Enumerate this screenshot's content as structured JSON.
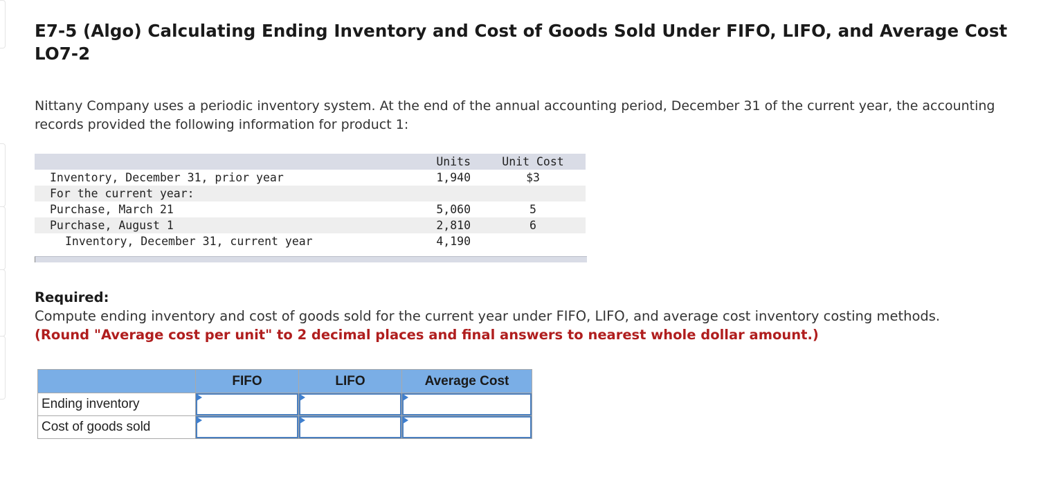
{
  "title": "E7-5 (Algo) Calculating Ending Inventory and Cost of Goods Sold Under FIFO, LIFO, and Average Cost LO7-2",
  "intro": "Nittany Company uses a periodic inventory system. At the end of the annual accounting period, December 31 of the current year, the accounting records provided the following information for product 1:",
  "data_table": {
    "headers": {
      "label": "",
      "units": "Units",
      "unit_cost": "Unit Cost"
    },
    "rows": [
      {
        "label": "Inventory, December 31, prior year",
        "units": "1,940",
        "unit_cost": "$3"
      },
      {
        "label": "For the current year:",
        "units": "",
        "unit_cost": ""
      },
      {
        "label": "Purchase, March 21",
        "units": "5,060",
        "unit_cost": "5"
      },
      {
        "label": "Purchase, August 1",
        "units": "2,810",
        "unit_cost": "6"
      },
      {
        "label": "Inventory, December 31, current year",
        "units": "4,190",
        "unit_cost": ""
      }
    ]
  },
  "required": {
    "title": "Required:",
    "text": "Compute ending inventory and cost of goods sold for the current year under FIFO, LIFO, and average cost inventory costing methods.",
    "note": "(Round \"Average cost per unit\" to 2 decimal places and final answers to nearest whole dollar amount.)"
  },
  "answer_table": {
    "columns": [
      "",
      "FIFO",
      "LIFO",
      "Average Cost"
    ],
    "rows": [
      {
        "label": "Ending inventory",
        "values": [
          "",
          "",
          ""
        ]
      },
      {
        "label": "Cost of goods sold",
        "values": [
          "",
          "",
          ""
        ]
      }
    ]
  },
  "colors": {
    "header_blue": "#7aaee6",
    "input_border": "#4a7fbf",
    "note_red": "#b01e1e",
    "table_header_gray": "#d9dce6"
  },
  "icons": {
    "input_marker": "triangle-right-icon"
  }
}
